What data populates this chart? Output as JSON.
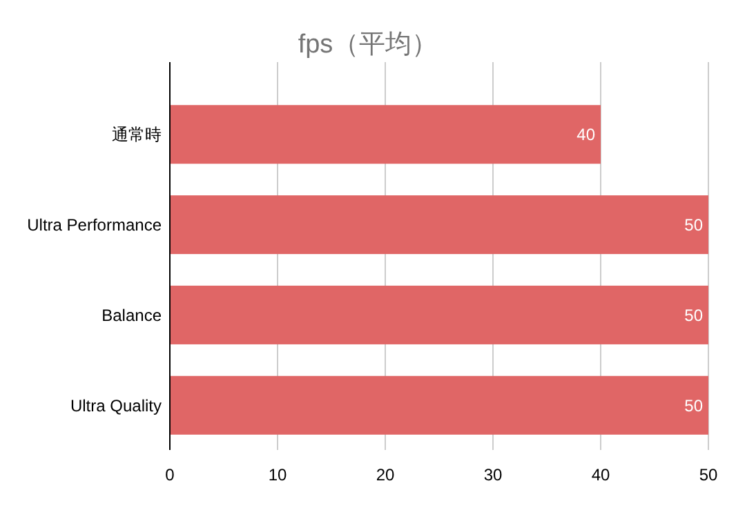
{
  "chart_data": {
    "type": "bar",
    "orientation": "horizontal",
    "title": "fps（平均）",
    "categories": [
      "通常時",
      "Ultra Performance",
      "Balance",
      "Ultra Quality"
    ],
    "values": [
      40,
      50,
      50,
      50
    ],
    "color": "#e06666",
    "xlim": [
      0,
      50
    ],
    "xticks": [
      0,
      10,
      20,
      30,
      40,
      50
    ],
    "grid": "x",
    "data_labels": true
  }
}
